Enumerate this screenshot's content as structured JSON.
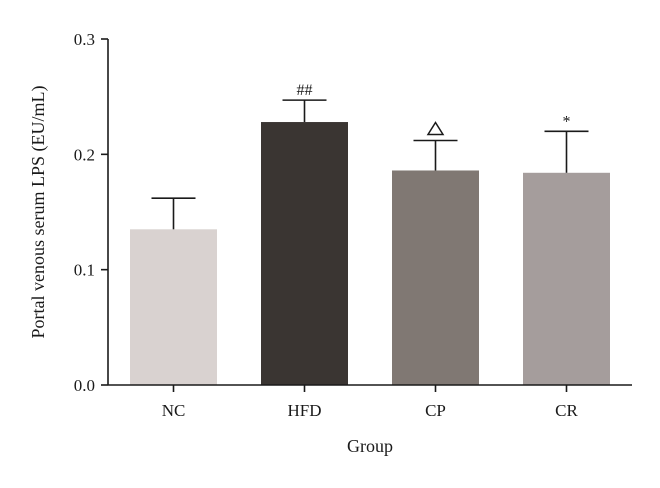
{
  "chart_data": {
    "type": "bar",
    "categories": [
      "NC",
      "HFD",
      "CP",
      "CR"
    ],
    "values": [
      0.135,
      0.228,
      0.186,
      0.184
    ],
    "errors": [
      0.027,
      0.019,
      0.026,
      0.036
    ],
    "bar_colors": [
      "#d9d2d0",
      "#3a3532",
      "#807873",
      "#a59d9c"
    ],
    "annotations": [
      "",
      "##",
      "",
      "*"
    ],
    "annotation_symbols": [
      "",
      "",
      "triangle",
      ""
    ],
    "xlabel": "Group",
    "ylabel": "Portal venous serum LPS (EU/mL)",
    "ylim": [
      0,
      0.3
    ],
    "yticks": [
      "0.0",
      "0.1",
      "0.2",
      "0.3"
    ],
    "ytick_values": [
      0,
      0.1,
      0.2,
      0.3
    ],
    "grid": false
  }
}
